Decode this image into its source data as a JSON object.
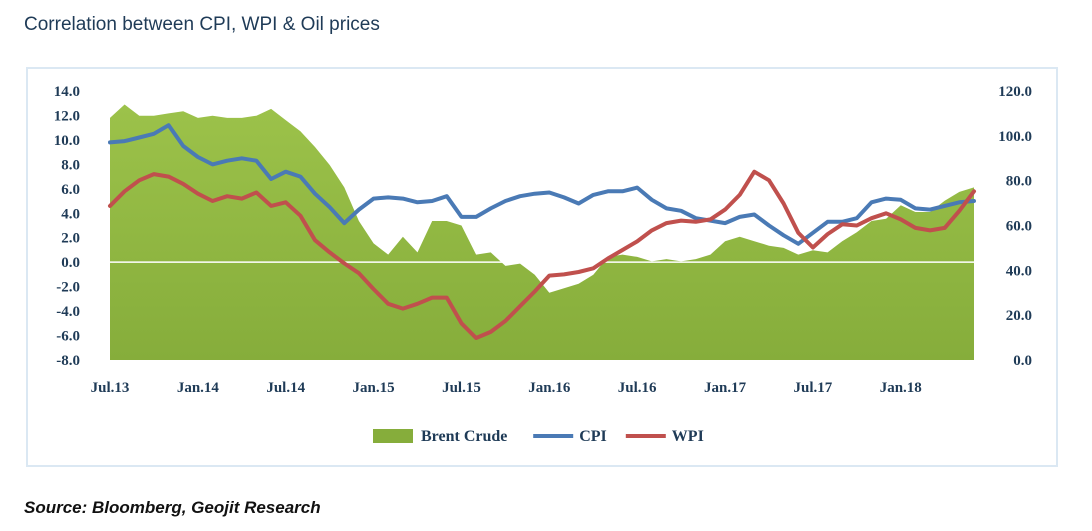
{
  "title": "Correlation between CPI, WPI & Oil prices",
  "source": "Source:  Bloomberg, Geojit Research",
  "chart_data": {
    "type": "line",
    "title": "Correlation between CPI, WPI & Oil prices",
    "x_tick_labels": [
      "Jul.13",
      "Jan.14",
      "Jul.14",
      "Jan.15",
      "Jul.15",
      "Jan.16",
      "Jul.16",
      "Jan.17",
      "Jul.17",
      "Jan.18"
    ],
    "y_left": {
      "ylim": [
        -8,
        14
      ],
      "ticks": [
        "14.0",
        "12.0",
        "10.0",
        "8.0",
        "6.0",
        "4.0",
        "2.0",
        "0.0",
        "-2.0",
        "-4.0",
        "-6.0",
        "-8.0"
      ]
    },
    "y_right": {
      "ylim": [
        0,
        120
      ],
      "ticks": [
        "120.0",
        "100.0",
        "80.0",
        "60.0",
        "40.0",
        "20.0",
        "0.0"
      ]
    },
    "grid": "zero-line only",
    "legend": "bottom-center",
    "x_months": [
      "Jul.13",
      "Aug.13",
      "Sep.13",
      "Oct.13",
      "Nov.13",
      "Dec.13",
      "Jan.14",
      "Feb.14",
      "Mar.14",
      "Apr.14",
      "May.14",
      "Jun.14",
      "Jul.14",
      "Aug.14",
      "Sep.14",
      "Oct.14",
      "Nov.14",
      "Dec.14",
      "Jan.15",
      "Feb.15",
      "Mar.15",
      "Apr.15",
      "May.15",
      "Jun.15",
      "Jul.15",
      "Aug.15",
      "Sep.15",
      "Oct.15",
      "Nov.15",
      "Dec.15",
      "Jan.16",
      "Feb.16",
      "Mar.16",
      "Apr.16",
      "May.16",
      "Jun.16",
      "Jul.16",
      "Aug.16",
      "Sep.16",
      "Oct.16",
      "Nov.16",
      "Dec.16",
      "Jan.17",
      "Feb.17",
      "Mar.17",
      "Apr.17",
      "May.17",
      "Jun.17",
      "Jul.17",
      "Aug.17",
      "Sep.17",
      "Oct.17",
      "Nov.17",
      "Dec.17",
      "Jan.18",
      "Feb.18",
      "Mar.18",
      "Apr.18",
      "May.18",
      "Jun.18"
    ],
    "series": [
      {
        "name": "Brent Crude",
        "kind": "area",
        "axis": "right",
        "color": "#86ad3b",
        "values": [
          108,
          114,
          109,
          109,
          110,
          111,
          108,
          109,
          108,
          108,
          109,
          112,
          107,
          102,
          95,
          87,
          77,
          62,
          52,
          47,
          55,
          48,
          62,
          62,
          60,
          47,
          48,
          42,
          43,
          38,
          30,
          32,
          34,
          38,
          46,
          47,
          46,
          44,
          45,
          44,
          45,
          47,
          53,
          55,
          53,
          51,
          50,
          47,
          49,
          48,
          53,
          57,
          62,
          63,
          69,
          66,
          66,
          71,
          75,
          77
        ]
      },
      {
        "name": "CPI",
        "kind": "line",
        "axis": "left",
        "color": "#4a7ab5",
        "values": [
          9.8,
          9.9,
          10.2,
          10.5,
          11.2,
          9.5,
          8.6,
          8.0,
          8.3,
          8.5,
          8.3,
          6.8,
          7.4,
          7.0,
          5.6,
          4.5,
          3.2,
          4.3,
          5.2,
          5.3,
          5.2,
          4.9,
          5.0,
          5.4,
          3.7,
          3.7,
          4.4,
          5.0,
          5.4,
          5.6,
          5.7,
          5.3,
          4.8,
          5.5,
          5.8,
          5.8,
          6.1,
          5.1,
          4.4,
          4.2,
          3.6,
          3.4,
          3.2,
          3.7,
          3.9,
          3.0,
          2.2,
          1.5,
          2.4,
          3.3,
          3.3,
          3.6,
          4.9,
          5.2,
          5.1,
          4.4,
          4.3,
          4.6,
          4.9,
          5.0
        ]
      },
      {
        "name": "WPI",
        "kind": "line",
        "axis": "left",
        "color": "#c0504d",
        "values": [
          4.6,
          5.8,
          6.7,
          7.2,
          7.0,
          6.4,
          5.6,
          5.0,
          5.4,
          5.2,
          5.7,
          4.6,
          4.9,
          3.8,
          1.8,
          0.8,
          -0.1,
          -0.9,
          -2.2,
          -3.4,
          -3.8,
          -3.4,
          -2.9,
          -2.9,
          -5.0,
          -6.2,
          -5.7,
          -4.8,
          -3.6,
          -2.4,
          -1.1,
          -1.0,
          -0.8,
          -0.5,
          0.3,
          1.0,
          1.7,
          2.6,
          3.2,
          3.4,
          3.3,
          3.5,
          4.3,
          5.5,
          7.4,
          6.7,
          4.8,
          2.4,
          1.2,
          2.3,
          3.1,
          3.0,
          3.6,
          4.0,
          3.5,
          2.8,
          2.6,
          2.8,
          4.2,
          5.8
        ]
      }
    ]
  }
}
